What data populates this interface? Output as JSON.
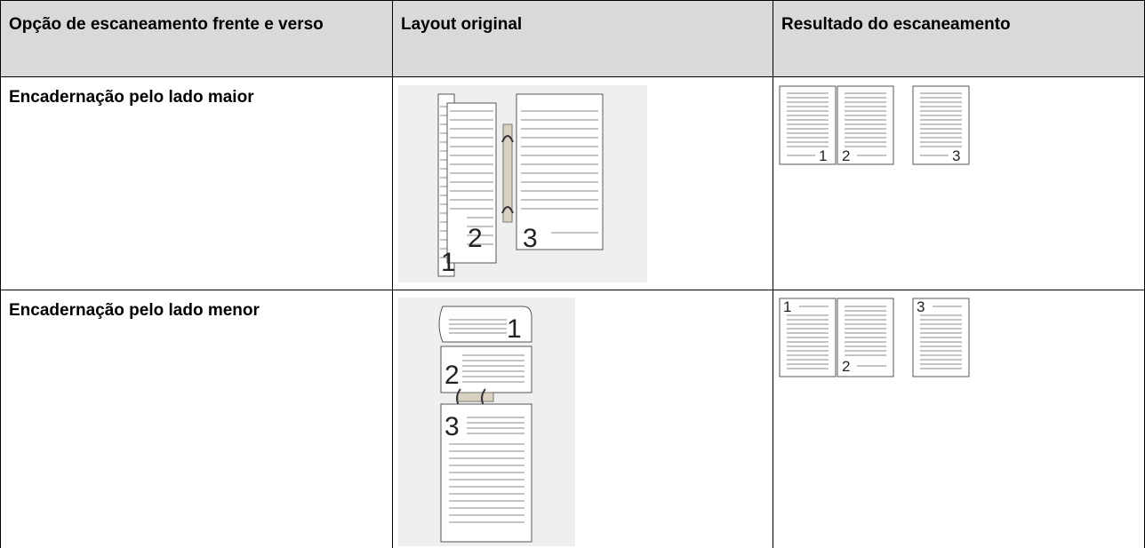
{
  "table": {
    "header": [
      "Opção de escaneamento frente e verso",
      "Layout original",
      "Resultado do escaneamento"
    ],
    "rows": [
      {
        "option": "Encadernação pelo lado maior",
        "layout_pages": [
          "1",
          "2",
          "3"
        ],
        "result_pages": [
          "1",
          "2",
          "3"
        ]
      },
      {
        "option": "Encadernação pelo lado menor",
        "layout_pages": [
          "1",
          "2",
          "3"
        ],
        "result_pages": [
          "1",
          "2",
          "3"
        ]
      }
    ]
  }
}
